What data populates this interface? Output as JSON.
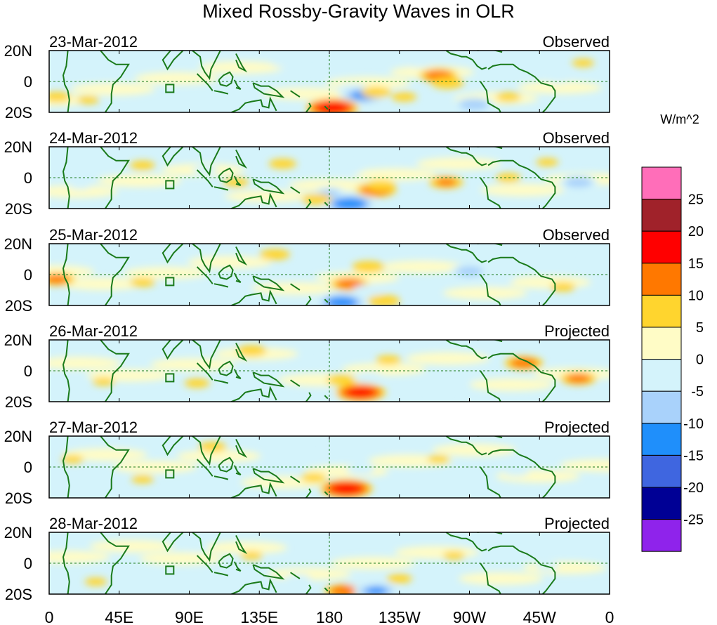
{
  "chart_data": {
    "type": "heatmap",
    "title": "Mixed Rossby-Gravity Waves in OLR",
    "units_label": "W/m^2",
    "lon_ticks": [
      "0",
      "45E",
      "90E",
      "135E",
      "180",
      "135W",
      "90W",
      "45W",
      "0"
    ],
    "lat_ticks": [
      "20N",
      "0",
      "20S"
    ],
    "lon_range": [
      0,
      360
    ],
    "lat_range": [
      -20,
      20
    ],
    "colorbar": {
      "levels": [
        "25",
        "20",
        "15",
        "10",
        "5",
        "0",
        "-5",
        "-10",
        "-15",
        "-20",
        "-25"
      ],
      "colors": [
        "#ff6eb9",
        "#a0222a",
        "#ff0000",
        "#ff7800",
        "#ffd52e",
        "#fffcc6",
        "#d4f3fb",
        "#a9d2fb",
        "#1f8ffb",
        "#3f66e0",
        "#000095",
        "#8f23eb"
      ]
    },
    "panels": [
      {
        "date": "23-Mar-2012",
        "status": "Observed",
        "blobs": [
          {
            "lon": 250,
            "lat": 4,
            "val": 12
          },
          {
            "lon": 256,
            "lat": -1,
            "val": 9
          },
          {
            "lon": 195,
            "lat": -5,
            "val": -9
          },
          {
            "lon": 202,
            "lat": -9,
            "val": -16
          },
          {
            "lon": 182,
            "lat": -17,
            "val": 19
          },
          {
            "lon": 210,
            "lat": -7,
            "val": 8
          },
          {
            "lon": 228,
            "lat": -10,
            "val": 6
          },
          {
            "lon": 180,
            "lat": 7,
            "val": -6
          },
          {
            "lon": 238,
            "lat": 12,
            "val": -7
          },
          {
            "lon": 273,
            "lat": -15,
            "val": -13
          },
          {
            "lon": 327,
            "lat": 2,
            "val": -7
          },
          {
            "lon": 5,
            "lat": -10,
            "val": 7
          },
          {
            "lon": 25,
            "lat": -12,
            "val": 5
          },
          {
            "lon": 118,
            "lat": -2,
            "val": -5
          },
          {
            "lon": 150,
            "lat": 12,
            "val": -5
          },
          {
            "lon": 295,
            "lat": -10,
            "val": 6
          },
          {
            "lon": 343,
            "lat": 12,
            "val": 5
          }
        ]
      },
      {
        "date": "24-Mar-2012",
        "status": "Observed",
        "blobs": [
          {
            "lon": 210,
            "lat": -8,
            "val": 13
          },
          {
            "lon": 213,
            "lat": -5,
            "val": 8
          },
          {
            "lon": 180,
            "lat": -10,
            "val": -10
          },
          {
            "lon": 193,
            "lat": -17,
            "val": -19
          },
          {
            "lon": 172,
            "lat": -14,
            "val": 8
          },
          {
            "lon": 150,
            "lat": 9,
            "val": 7
          },
          {
            "lon": 192,
            "lat": 5,
            "val": -8
          },
          {
            "lon": 255,
            "lat": -3,
            "val": 10
          },
          {
            "lon": 340,
            "lat": -3,
            "val": -12
          },
          {
            "lon": 295,
            "lat": 0,
            "val": 6
          },
          {
            "lon": 120,
            "lat": -3,
            "val": 6
          },
          {
            "lon": 100,
            "lat": 5,
            "val": -6
          },
          {
            "lon": 60,
            "lat": 8,
            "val": 6
          },
          {
            "lon": 20,
            "lat": -5,
            "val": -5
          },
          {
            "lon": 228,
            "lat": 12,
            "val": -5
          },
          {
            "lon": 320,
            "lat": 10,
            "val": 5
          }
        ]
      },
      {
        "date": "25-Mar-2012",
        "status": "Observed",
        "blobs": [
          {
            "lon": 193,
            "lat": -6,
            "val": 12
          },
          {
            "lon": 215,
            "lat": -17,
            "val": 9
          },
          {
            "lon": 188,
            "lat": -18,
            "val": -18
          },
          {
            "lon": 205,
            "lat": -10,
            "val": -8
          },
          {
            "lon": 205,
            "lat": 5,
            "val": 9
          },
          {
            "lon": 145,
            "lat": 13,
            "val": 8
          },
          {
            "lon": 270,
            "lat": 2,
            "val": -12
          },
          {
            "lon": 290,
            "lat": -3,
            "val": -7
          },
          {
            "lon": 5,
            "lat": -3,
            "val": 11
          },
          {
            "lon": 240,
            "lat": -10,
            "val": -6
          },
          {
            "lon": 100,
            "lat": -5,
            "val": -6
          },
          {
            "lon": 60,
            "lat": -5,
            "val": 6
          },
          {
            "lon": 330,
            "lat": -8,
            "val": 6
          },
          {
            "lon": 350,
            "lat": 10,
            "val": -5
          },
          {
            "lon": 245,
            "lat": 12,
            "val": -5
          }
        ]
      },
      {
        "date": "26-Mar-2012",
        "status": "Projected",
        "blobs": [
          {
            "lon": 200,
            "lat": -14,
            "val": 18
          },
          {
            "lon": 188,
            "lat": -6,
            "val": 8
          },
          {
            "lon": 205,
            "lat": -4,
            "val": -8
          },
          {
            "lon": 175,
            "lat": -15,
            "val": -7
          },
          {
            "lon": 130,
            "lat": 13,
            "val": 8
          },
          {
            "lon": 218,
            "lat": 7,
            "val": 6
          },
          {
            "lon": 305,
            "lat": 5,
            "val": 12
          },
          {
            "lon": 340,
            "lat": -5,
            "val": 11
          },
          {
            "lon": 270,
            "lat": -3,
            "val": -7
          },
          {
            "lon": 35,
            "lat": -7,
            "val": 5
          },
          {
            "lon": 95,
            "lat": -8,
            "val": 6
          },
          {
            "lon": 250,
            "lat": -12,
            "val": -5
          },
          {
            "lon": 160,
            "lat": 5,
            "val": -5
          }
        ]
      },
      {
        "date": "27-Mar-2012",
        "status": "Projected",
        "blobs": [
          {
            "lon": 191,
            "lat": -14,
            "val": 19
          },
          {
            "lon": 170,
            "lat": -7,
            "val": 6
          },
          {
            "lon": 200,
            "lat": -2,
            "val": -7
          },
          {
            "lon": 225,
            "lat": -8,
            "val": -7
          },
          {
            "lon": 105,
            "lat": 13,
            "val": 7
          },
          {
            "lon": 160,
            "lat": 8,
            "val": -6
          },
          {
            "lon": 225,
            "lat": 12,
            "val": -5
          },
          {
            "lon": 15,
            "lat": 5,
            "val": 5
          },
          {
            "lon": 300,
            "lat": -3,
            "val": -6
          },
          {
            "lon": 250,
            "lat": 5,
            "val": 5
          },
          {
            "lon": 60,
            "lat": -8,
            "val": 5
          }
        ]
      },
      {
        "date": "28-Mar-2012",
        "status": "Projected",
        "blobs": [
          {
            "lon": 190,
            "lat": -18,
            "val": 13
          },
          {
            "lon": 210,
            "lat": -18,
            "val": -15
          },
          {
            "lon": 200,
            "lat": -12,
            "val": -7
          },
          {
            "lon": 160,
            "lat": -10,
            "val": -6
          },
          {
            "lon": 225,
            "lat": -10,
            "val": 6
          },
          {
            "lon": 130,
            "lat": 5,
            "val": 5
          },
          {
            "lon": 95,
            "lat": 10,
            "val": -5
          },
          {
            "lon": 260,
            "lat": 5,
            "val": 5
          },
          {
            "lon": 320,
            "lat": -2,
            "val": -5
          },
          {
            "lon": 30,
            "lat": -12,
            "val": 5
          }
        ]
      }
    ]
  }
}
